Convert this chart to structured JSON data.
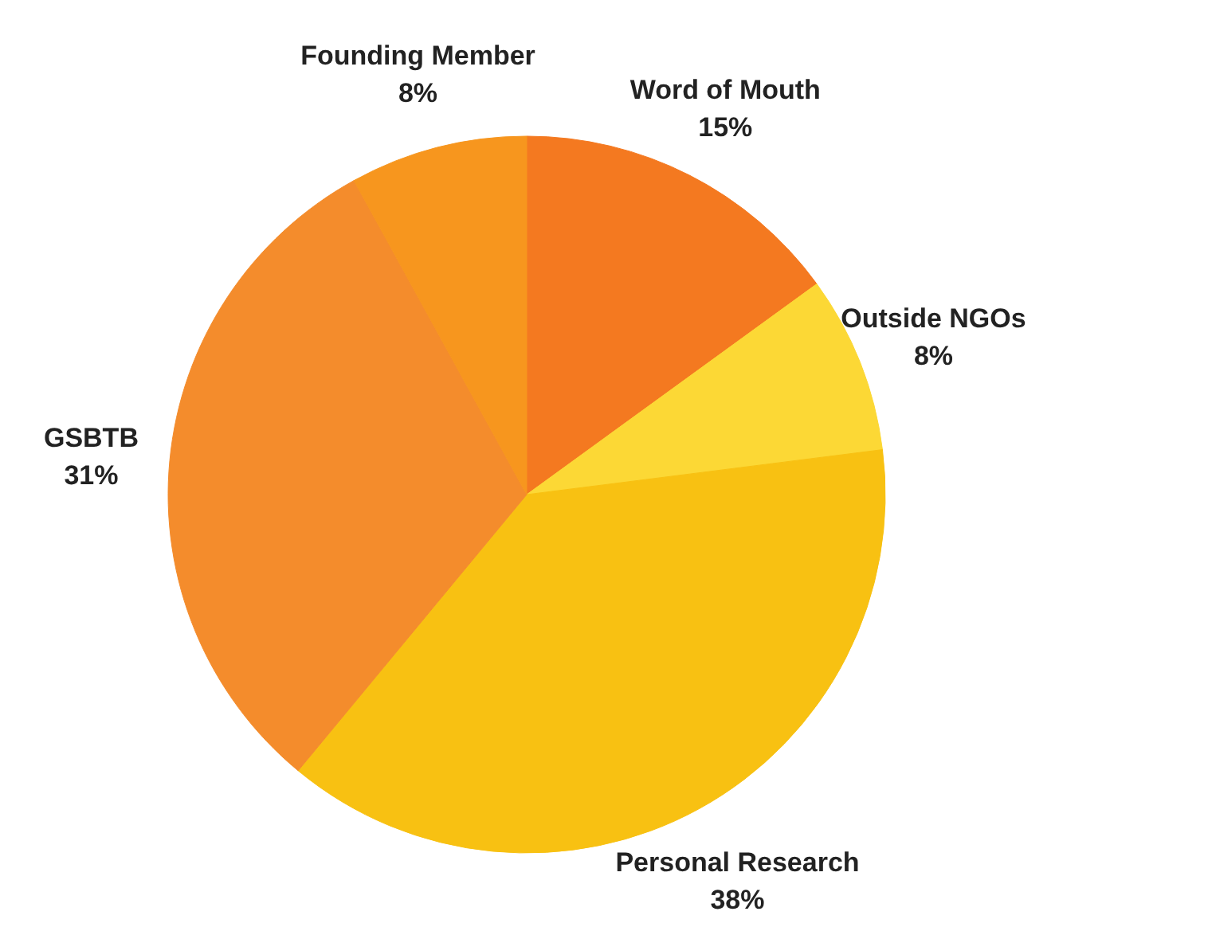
{
  "chart_data": {
    "type": "pie",
    "categories": [
      "Word of Mouth",
      "Outside NGOs",
      "Personal Research",
      "GSBTB",
      "Founding Member"
    ],
    "values": [
      15,
      8,
      38,
      31,
      8
    ],
    "colors": [
      "#f47920",
      "#fcd835",
      "#f8c112",
      "#f48c2c",
      "#f7961e"
    ],
    "value_labels": [
      "15%",
      "8%",
      "38%",
      "31%",
      "8%"
    ]
  }
}
